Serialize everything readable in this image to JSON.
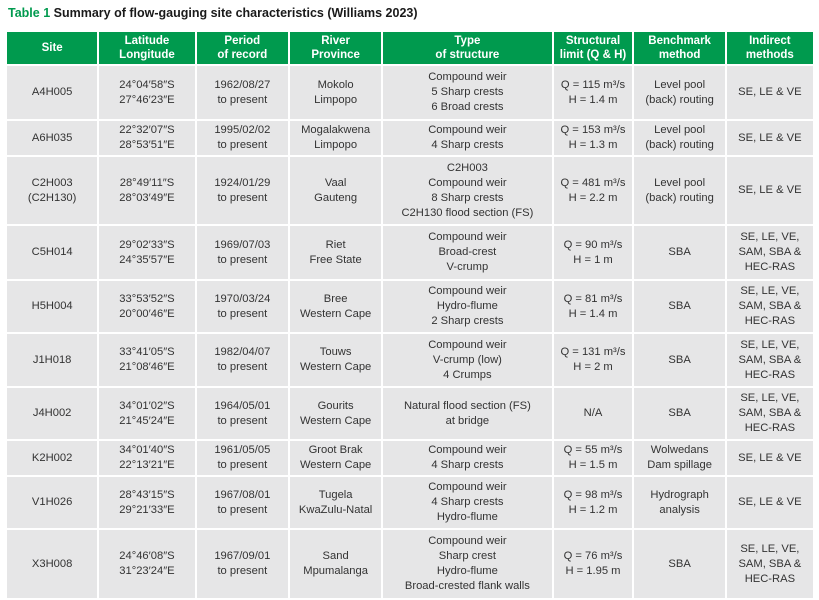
{
  "caption": {
    "number": "Table 1",
    "text": "Summary of flow-gauging site characteristics (Williams 2023)"
  },
  "colors": {
    "header_bg": "#009a4e",
    "cell_bg": "#e6e6e7",
    "caption_accent": "#009a4e"
  },
  "headers": [
    [
      "Site"
    ],
    [
      "Latitude",
      "Longitude"
    ],
    [
      "Period",
      "of record"
    ],
    [
      "River",
      "Province"
    ],
    [
      "Type",
      "of structure"
    ],
    [
      "Structural",
      "limit (Q & H)"
    ],
    [
      "Benchmark",
      "method"
    ],
    [
      "Indirect",
      "methods"
    ]
  ],
  "rows": [
    [
      [
        "A4H005"
      ],
      [
        "24°04′58″S",
        "27°46′23″E"
      ],
      [
        "1962/08/27",
        "to present"
      ],
      [
        "Mokolo",
        "Limpopo"
      ],
      [
        "Compound weir",
        "5 Sharp crests",
        "6 Broad crests"
      ],
      [
        "Q = 115 m³/s",
        "H = 1.4 m"
      ],
      [
        "Level pool",
        "(back) routing"
      ],
      [
        "SE, LE & VE"
      ]
    ],
    [
      [
        "A6H035"
      ],
      [
        "22°32′07″S",
        "28°53′51″E"
      ],
      [
        "1995/02/02",
        "to present"
      ],
      [
        "Mogalakwena",
        "Limpopo"
      ],
      [
        "Compound weir",
        "4 Sharp crests"
      ],
      [
        "Q = 153 m³/s",
        "H = 1.3 m"
      ],
      [
        "Level pool",
        "(back) routing"
      ],
      [
        "SE, LE & VE"
      ]
    ],
    [
      [
        "C2H003",
        "(C2H130)"
      ],
      [
        "28°49′11″S",
        "28°03′49″E"
      ],
      [
        "1924/01/29",
        "to present"
      ],
      [
        "Vaal",
        "Gauteng"
      ],
      [
        "C2H003",
        "Compound weir",
        "8 Sharp crests",
        "C2H130 flood section (FS)"
      ],
      [
        "Q = 481 m³/s",
        "H = 2.2 m"
      ],
      [
        "Level pool",
        "(back) routing"
      ],
      [
        "SE, LE & VE"
      ]
    ],
    [
      [
        "C5H014"
      ],
      [
        "29°02′33″S",
        "24°35′57″E"
      ],
      [
        "1969/07/03",
        "to present"
      ],
      [
        "Riet",
        "Free State"
      ],
      [
        "Compound weir",
        "Broad-crest",
        "V-crump"
      ],
      [
        "Q = 90 m³/s",
        "H = 1 m"
      ],
      [
        "SBA"
      ],
      [
        "SE, LE, VE,",
        "SAM, SBA &",
        "HEC-RAS"
      ]
    ],
    [
      [
        "H5H004"
      ],
      [
        "33°53′52″S",
        "20°00′46″E"
      ],
      [
        "1970/03/24",
        "to present"
      ],
      [
        "Bree",
        "Western Cape"
      ],
      [
        "Compound weir",
        "Hydro-flume",
        "2 Sharp crests"
      ],
      [
        "Q = 81 m³/s",
        "H = 1.4 m"
      ],
      [
        "SBA"
      ],
      [
        "SE, LE, VE,",
        "SAM, SBA &",
        "HEC-RAS"
      ]
    ],
    [
      [
        "J1H018"
      ],
      [
        "33°41′05″S",
        "21°08′46″E"
      ],
      [
        "1982/04/07",
        "to present"
      ],
      [
        "Touws",
        "Western Cape"
      ],
      [
        "Compound weir",
        "V-crump (low)",
        "4 Crumps"
      ],
      [
        "Q = 131 m³/s",
        "H = 2 m"
      ],
      [
        "SBA"
      ],
      [
        "SE, LE, VE,",
        "SAM, SBA &",
        "HEC-RAS"
      ]
    ],
    [
      [
        "J4H002"
      ],
      [
        "34°01′02″S",
        "21°45′24″E"
      ],
      [
        "1964/05/01",
        "to present"
      ],
      [
        "Gourits",
        "Western Cape"
      ],
      [
        "Natural flood section (FS)",
        "at bridge"
      ],
      [
        "N/A"
      ],
      [
        "SBA"
      ],
      [
        "SE, LE, VE,",
        "SAM, SBA &",
        "HEC-RAS"
      ]
    ],
    [
      [
        "K2H002"
      ],
      [
        "34°01′40″S",
        "22°13′21″E"
      ],
      [
        "1961/05/05",
        "to present"
      ],
      [
        "Groot Brak",
        "Western Cape"
      ],
      [
        "Compound weir",
        "4 Sharp crests"
      ],
      [
        "Q = 55 m³/s",
        "H = 1.5 m"
      ],
      [
        "Wolwedans",
        "Dam spillage"
      ],
      [
        "SE, LE & VE"
      ]
    ],
    [
      [
        "V1H026"
      ],
      [
        "28°43′15″S",
        "29°21′33″E"
      ],
      [
        "1967/08/01",
        "to present"
      ],
      [
        "Tugela",
        "KwaZulu-Natal"
      ],
      [
        "Compound weir",
        "4 Sharp crests",
        "Hydro-flume"
      ],
      [
        "Q = 98 m³/s",
        "H = 1.2 m"
      ],
      [
        "Hydrograph",
        "analysis"
      ],
      [
        "SE, LE & VE"
      ]
    ],
    [
      [
        "X3H008"
      ],
      [
        "24°46′08″S",
        "31°23′24″E"
      ],
      [
        "1967/09/01",
        "to present"
      ],
      [
        "Sand",
        "Mpumalanga"
      ],
      [
        "Compound weir",
        "Sharp crest",
        "Hydro-flume",
        "Broad-crested flank walls"
      ],
      [
        "Q = 76 m³/s",
        "H = 1.95 m"
      ],
      [
        "SBA"
      ],
      [
        "SE, LE, VE,",
        "SAM, SBA &",
        "HEC-RAS"
      ]
    ]
  ]
}
